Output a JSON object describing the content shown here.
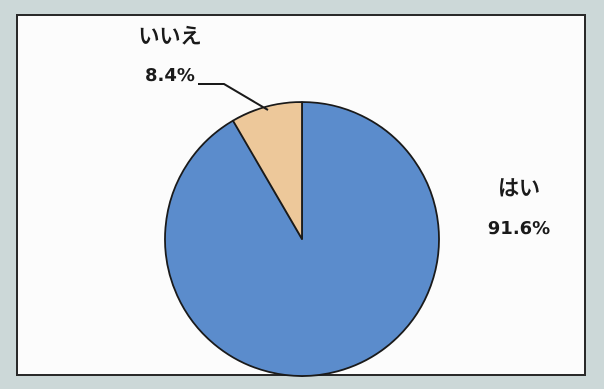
{
  "chart_data": {
    "type": "pie",
    "title": "",
    "categories": [
      "はい",
      "いいえ"
    ],
    "values": [
      91.6,
      8.4
    ],
    "value_labels": [
      "91.6%",
      "8.4%"
    ],
    "colors": [
      "#5b8ccc",
      "#edc89a"
    ],
    "edge_color": "#1a1a1a",
    "start_angle_deg": -90,
    "direction": "clockwise",
    "legend": "none",
    "grid": false
  }
}
